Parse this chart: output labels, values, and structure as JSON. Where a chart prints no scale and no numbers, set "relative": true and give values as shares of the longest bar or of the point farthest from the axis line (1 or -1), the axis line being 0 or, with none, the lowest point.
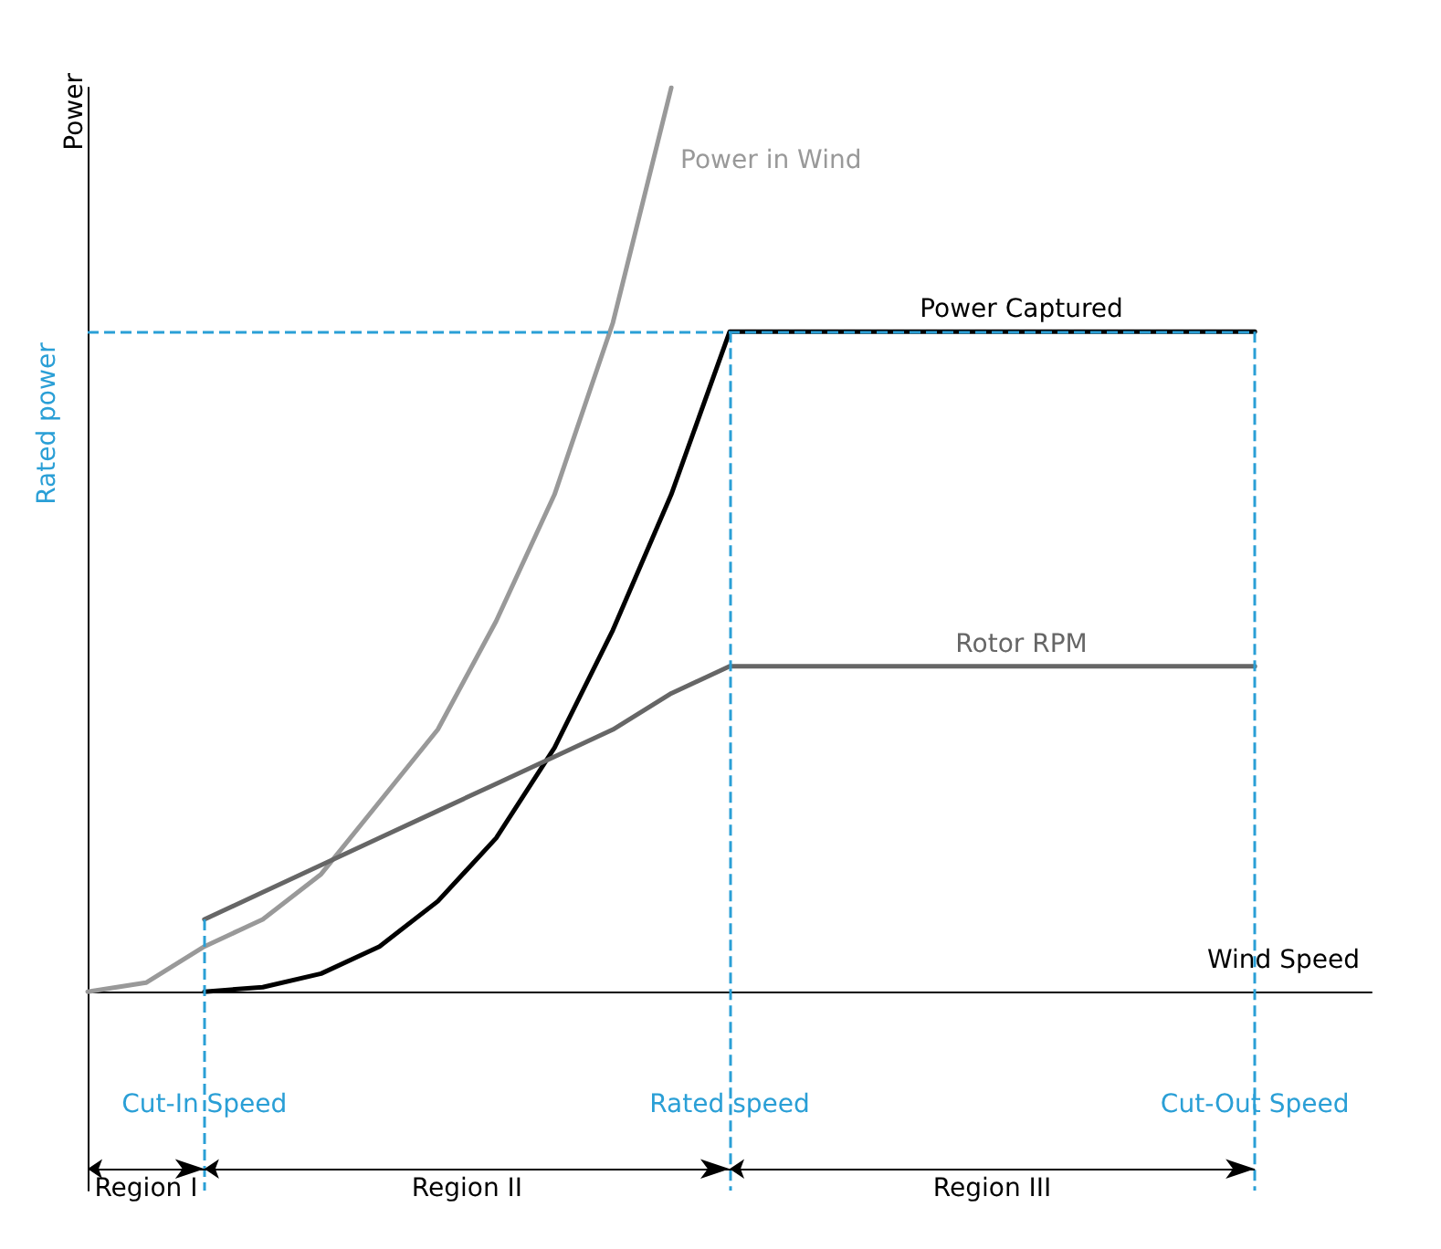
{
  "chart_data": {
    "type": "line",
    "relative": true,
    "xlabel": "Wind Speed",
    "ylabel": "Power",
    "marker": "none",
    "line_style": "solid",
    "categories": [
      null,
      null,
      "Cut-In Speed",
      null,
      null,
      null,
      null,
      null,
      null,
      null,
      null,
      "Rated speed",
      null,
      null,
      null,
      null,
      null,
      null,
      null,
      null,
      "Cut-Out Speed",
      null,
      null
    ],
    "series": [
      {
        "name": "Power in Wind",
        "color": "#999999",
        "values": [
          0,
          0.01,
          0.05,
          0.08,
          0.13,
          0.21,
          0.29,
          0.41,
          0.55,
          0.74,
          1,
          null,
          null,
          null,
          null,
          null,
          null,
          null,
          null,
          null,
          null,
          null,
          null
        ]
      },
      {
        "name": "Power Captured",
        "color": "#000000",
        "values": [
          null,
          null,
          0,
          0.005,
          0.02,
          0.05,
          0.1,
          0.17,
          0.27,
          0.4,
          0.55,
          0.73,
          0.73,
          0.73,
          0.73,
          0.73,
          0.73,
          0.73,
          0.73,
          0.73,
          0.73,
          null,
          null
        ]
      },
      {
        "name": "Rotor RPM",
        "color": "#666666",
        "values": [
          null,
          null,
          0.08,
          0.11,
          0.14,
          0.17,
          0.2,
          0.23,
          0.26,
          0.29,
          0.33,
          0.36,
          0.36,
          0.36,
          0.36,
          0.36,
          0.36,
          0.36,
          0.36,
          0.36,
          0.36,
          null,
          null
        ]
      }
    ],
    "ref_lines": [
      {
        "axis": "y",
        "value": 0.73,
        "label": "Rated power",
        "color": "#2a9fd6",
        "line_style": "dashed"
      },
      {
        "axis": "x",
        "value": "Cut-In Speed",
        "color": "#2a9fd6",
        "line_style": "dashed"
      },
      {
        "axis": "x",
        "value": "Rated speed",
        "color": "#2a9fd6",
        "line_style": "dashed"
      },
      {
        "axis": "x",
        "value": "Cut-Out Speed",
        "color": "#2a9fd6",
        "line_style": "dashed"
      }
    ],
    "annotations": [
      "Region I",
      "Region II",
      "Region III"
    ]
  }
}
